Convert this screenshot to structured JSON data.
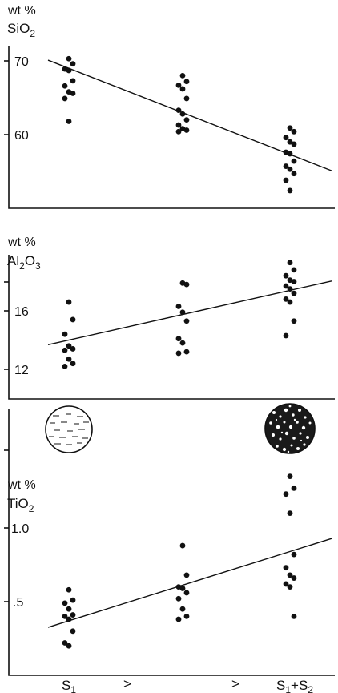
{
  "chart_data": [
    {
      "type": "scatter",
      "ylabel": {
        "unit": "wt %",
        "oxide_main": "SiO",
        "oxide_sub": "2"
      },
      "yticks": [
        {
          "value": 60,
          "label": "60"
        },
        {
          "value": 70,
          "label": "70"
        }
      ],
      "ylim": [
        51,
        73
      ],
      "categories": [
        "S1",
        "",
        "S1+S2"
      ],
      "points": [
        {
          "x": 0,
          "y": 70.3
        },
        {
          "x": 0,
          "y": 69.6
        },
        {
          "x": 0,
          "y": 68.9
        },
        {
          "x": 0,
          "y": 68.7
        },
        {
          "x": 0,
          "y": 67.3
        },
        {
          "x": 0,
          "y": 66.6
        },
        {
          "x": 0,
          "y": 65.8
        },
        {
          "x": 0,
          "y": 65.6
        },
        {
          "x": 0,
          "y": 64.9
        },
        {
          "x": 0,
          "y": 61.8
        },
        {
          "x": 1,
          "y": 68.0
        },
        {
          "x": 1,
          "y": 67.2
        },
        {
          "x": 1,
          "y": 66.7
        },
        {
          "x": 1,
          "y": 66.2
        },
        {
          "x": 1,
          "y": 64.9
        },
        {
          "x": 1,
          "y": 63.3
        },
        {
          "x": 1,
          "y": 62.8
        },
        {
          "x": 1,
          "y": 62.0
        },
        {
          "x": 1,
          "y": 61.3
        },
        {
          "x": 1,
          "y": 60.8
        },
        {
          "x": 1,
          "y": 60.6
        },
        {
          "x": 1,
          "y": 60.4
        },
        {
          "x": 2,
          "y": 60.9
        },
        {
          "x": 2,
          "y": 60.4
        },
        {
          "x": 2,
          "y": 59.6
        },
        {
          "x": 2,
          "y": 59.0
        },
        {
          "x": 2,
          "y": 58.7
        },
        {
          "x": 2,
          "y": 57.6
        },
        {
          "x": 2,
          "y": 57.4
        },
        {
          "x": 2,
          "y": 56.4
        },
        {
          "x": 2,
          "y": 55.7
        },
        {
          "x": 2,
          "y": 55.3
        },
        {
          "x": 2,
          "y": 54.7
        },
        {
          "x": 2,
          "y": 53.8
        },
        {
          "x": 2,
          "y": 52.4
        }
      ],
      "trend": [
        {
          "x": 0,
          "y": 69.0
        },
        {
          "x": 2,
          "y": 57.3
        }
      ]
    },
    {
      "type": "scatter",
      "ylabel": {
        "unit": "wt %",
        "oxide_main": "Al",
        "oxide_mid": "O",
        "oxide_sub": "2",
        "oxide_sub2": "3"
      },
      "yticks": [
        {
          "value": 12,
          "label": "12"
        },
        {
          "value": 16,
          "label": "16"
        }
      ],
      "ylim": [
        10.5,
        21.5
      ],
      "categories": [
        "S1",
        "",
        "S1+S2"
      ],
      "points": [
        {
          "x": 0,
          "y": 16.6
        },
        {
          "x": 0,
          "y": 15.4
        },
        {
          "x": 0,
          "y": 14.4
        },
        {
          "x": 0,
          "y": 13.6
        },
        {
          "x": 0,
          "y": 13.4
        },
        {
          "x": 0,
          "y": 13.3
        },
        {
          "x": 0,
          "y": 12.7
        },
        {
          "x": 0,
          "y": 12.4
        },
        {
          "x": 0,
          "y": 12.2
        },
        {
          "x": 1,
          "y": 17.9
        },
        {
          "x": 1,
          "y": 17.8
        },
        {
          "x": 1,
          "y": 16.3
        },
        {
          "x": 1,
          "y": 15.9
        },
        {
          "x": 1,
          "y": 15.3
        },
        {
          "x": 1,
          "y": 14.1
        },
        {
          "x": 1,
          "y": 13.8
        },
        {
          "x": 1,
          "y": 13.2
        },
        {
          "x": 1,
          "y": 13.1
        },
        {
          "x": 2,
          "y": 19.3
        },
        {
          "x": 2,
          "y": 18.8
        },
        {
          "x": 2,
          "y": 18.4
        },
        {
          "x": 2,
          "y": 18.1
        },
        {
          "x": 2,
          "y": 18.0
        },
        {
          "x": 2,
          "y": 17.7
        },
        {
          "x": 2,
          "y": 17.5
        },
        {
          "x": 2,
          "y": 17.2
        },
        {
          "x": 2,
          "y": 16.8
        },
        {
          "x": 2,
          "y": 16.6
        },
        {
          "x": 2,
          "y": 15.3
        },
        {
          "x": 2,
          "y": 14.3
        }
      ],
      "trend": [
        {
          "x": 0,
          "y": 14.0
        },
        {
          "x": 2,
          "y": 17.4
        }
      ]
    },
    {
      "type": "scatter",
      "ylabel": {
        "unit": "wt %",
        "oxide_main": "TiO",
        "oxide_sub": "2"
      },
      "yticks": [
        {
          "value": 0.5,
          "label": ".5"
        },
        {
          "value": 1.0,
          "label": "1.0"
        }
      ],
      "ylim": [
        0.0,
        1.72
      ],
      "categories": [
        "S1",
        "",
        "S1+S2"
      ],
      "category_labels": [
        {
          "main": "S",
          "sub": "1"
        },
        {
          "main": ">"
        },
        {
          "main": ">"
        },
        {
          "main": "S",
          "sub": "1",
          "mid": "+S",
          "sub2": "2"
        }
      ],
      "points": [
        {
          "x": 0,
          "y": 0.58
        },
        {
          "x": 0,
          "y": 0.51
        },
        {
          "x": 0,
          "y": 0.49
        },
        {
          "x": 0,
          "y": 0.45
        },
        {
          "x": 0,
          "y": 0.41
        },
        {
          "x": 0,
          "y": 0.4
        },
        {
          "x": 0,
          "y": 0.38
        },
        {
          "x": 0,
          "y": 0.3
        },
        {
          "x": 0,
          "y": 0.22
        },
        {
          "x": 0,
          "y": 0.2
        },
        {
          "x": 1,
          "y": 0.88
        },
        {
          "x": 1,
          "y": 0.68
        },
        {
          "x": 1,
          "y": 0.6
        },
        {
          "x": 1,
          "y": 0.59
        },
        {
          "x": 1,
          "y": 0.56
        },
        {
          "x": 1,
          "y": 0.52
        },
        {
          "x": 1,
          "y": 0.45
        },
        {
          "x": 1,
          "y": 0.4
        },
        {
          "x": 1,
          "y": 0.38
        },
        {
          "x": 2,
          "y": 1.35
        },
        {
          "x": 2,
          "y": 1.27
        },
        {
          "x": 2,
          "y": 1.23
        },
        {
          "x": 2,
          "y": 1.1
        },
        {
          "x": 2,
          "y": 0.82
        },
        {
          "x": 2,
          "y": 0.73
        },
        {
          "x": 2,
          "y": 0.68
        },
        {
          "x": 2,
          "y": 0.66
        },
        {
          "x": 2,
          "y": 0.62
        },
        {
          "x": 2,
          "y": 0.6
        },
        {
          "x": 2,
          "y": 0.4
        }
      ],
      "trend": [
        {
          "x": 0,
          "y": 0.37
        },
        {
          "x": 2,
          "y": 0.84
        }
      ]
    }
  ],
  "glyphs": {
    "left": {
      "icon": "dashed-texture-circle-icon"
    },
    "right": {
      "icon": "dark-mottled-circle-icon"
    }
  },
  "colors": {
    "ink": "#111111",
    "background": "#ffffff"
  }
}
